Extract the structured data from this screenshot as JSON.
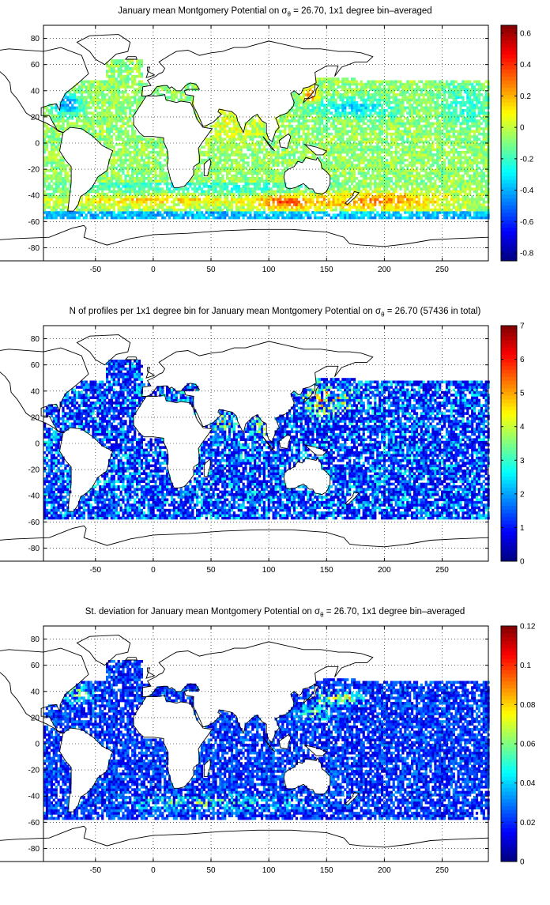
{
  "chart_data": [
    {
      "type": "heatmap",
      "title_pre": "January mean Montgomery Potential on ",
      "title_symbol": "σ",
      "title_sub": "θ",
      "title_post": " = 26.70, 1x1 degree bin–averaged",
      "xlim": [
        -95,
        290
      ],
      "ylim": [
        -90,
        90
      ],
      "x_ticks": [
        -50,
        0,
        50,
        100,
        150,
        200,
        250
      ],
      "y_ticks": [
        80,
        60,
        40,
        20,
        0,
        -20,
        -40,
        -60,
        -80
      ],
      "grid": true,
      "colorbar_range": [
        -0.85,
        0.65
      ],
      "colorbar_ticks": [
        "0.6",
        "0.4",
        "0.2",
        "0",
        "-0.2",
        "-0.4",
        "-0.6",
        "-0.8"
      ],
      "colormap": "jet",
      "field": "montgomery"
    },
    {
      "type": "heatmap",
      "title_pre": "N of profiles per 1x1 degree bin for January mean Montgomery Potential on ",
      "title_symbol": "σ",
      "title_sub": "θ",
      "title_post": " = 26.70 (57436 in total)",
      "xlim": [
        -95,
        290
      ],
      "ylim": [
        -90,
        90
      ],
      "x_ticks": [
        -50,
        0,
        50,
        100,
        150,
        200,
        250
      ],
      "y_ticks": [
        80,
        60,
        40,
        20,
        0,
        -20,
        -40,
        -60,
        -80
      ],
      "grid": true,
      "colorbar_range": [
        0,
        7
      ],
      "colorbar_ticks": [
        "7",
        "6",
        "5",
        "4",
        "3",
        "2",
        "1",
        "0"
      ],
      "colormap": "jet",
      "field": "count"
    },
    {
      "type": "heatmap",
      "title_pre": "St. deviation for January mean Montgomery Potential on ",
      "title_symbol": "σ",
      "title_sub": "θ",
      "title_post": " = 26.70, 1x1 degree bin–averaged",
      "xlim": [
        -95,
        290
      ],
      "ylim": [
        -90,
        90
      ],
      "x_ticks": [
        -50,
        0,
        50,
        100,
        150,
        200,
        250
      ],
      "y_ticks": [
        80,
        60,
        40,
        20,
        0,
        -20,
        -40,
        -60,
        -80
      ],
      "grid": true,
      "colorbar_range": [
        0,
        0.12
      ],
      "colorbar_ticks": [
        "0.12",
        "0.1",
        "0.08",
        "0.06",
        "0.04",
        "0.02",
        "0"
      ],
      "colormap": "jet",
      "field": "std"
    }
  ]
}
